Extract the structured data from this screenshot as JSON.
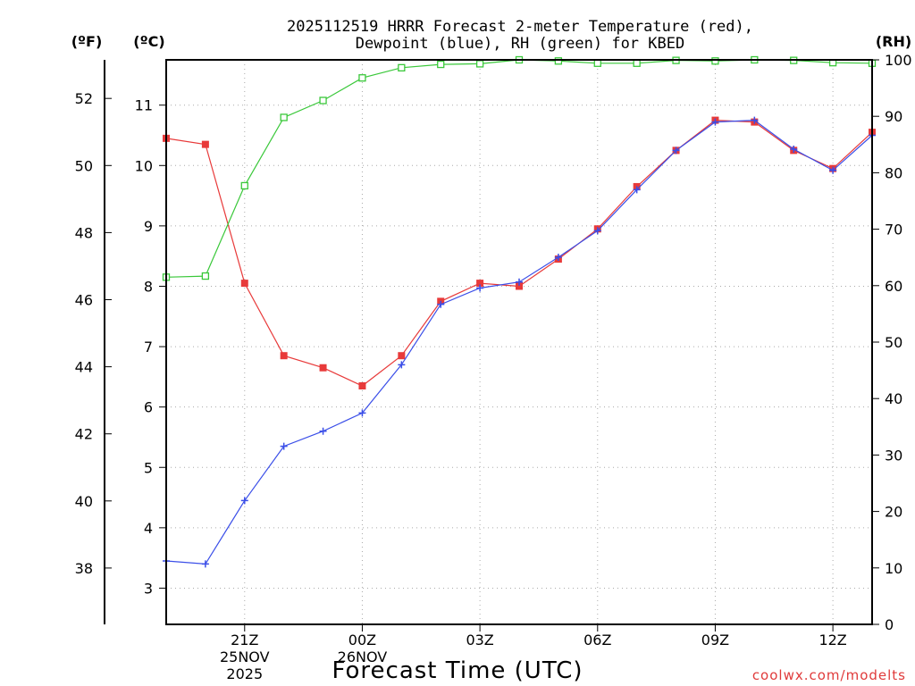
{
  "chart_data": {
    "type": "line",
    "title": "2025112519 HRRR Forecast 2-meter Temperature (red),",
    "subtitle": "Dewpoint (blue), RH (green) for KBED",
    "xlabel": "Forecast Time (UTC)",
    "credit": "coolwx.com/modelts",
    "units": {
      "fahrenheit": "(ºF)",
      "celsius": "(ºC)",
      "rh": "(RH)"
    },
    "x_forecast_hours": [
      0,
      1,
      2,
      3,
      4,
      5,
      6,
      7,
      8,
      9,
      10,
      11,
      12,
      13,
      14,
      15,
      16,
      17,
      18
    ],
    "x_tick_hours": [
      2,
      5,
      8,
      11,
      14,
      17
    ],
    "x_tick_labels": [
      [
        "21Z",
        "25NOV",
        "2025"
      ],
      [
        "00Z",
        "26NOV"
      ],
      [
        "03Z"
      ],
      [
        "06Z"
      ],
      [
        "09Z"
      ],
      [
        "12Z"
      ]
    ],
    "celsius_ticks": [
      3,
      4,
      5,
      6,
      7,
      8,
      9,
      10,
      11
    ],
    "fahrenheit_ticks": [
      38,
      40,
      42,
      44,
      46,
      48,
      50,
      52
    ],
    "rh_ticks": [
      0,
      10,
      20,
      30,
      40,
      50,
      60,
      70,
      80,
      90,
      100
    ],
    "ylim_celsius": [
      2.4,
      11.75
    ],
    "ylim_rh": [
      0,
      100
    ],
    "series": [
      {
        "name": "Temperature",
        "unit": "celsius",
        "color": "#e83a3a",
        "marker": "filled-square",
        "values": [
          10.45,
          10.35,
          8.05,
          6.85,
          6.65,
          6.35,
          6.85,
          7.75,
          8.05,
          8.0,
          8.45,
          8.95,
          9.65,
          10.25,
          10.75,
          10.72,
          10.25,
          9.95,
          10.55
        ]
      },
      {
        "name": "Dewpoint",
        "unit": "celsius",
        "color": "#3a4ee8",
        "marker": "plus",
        "values": [
          3.45,
          3.4,
          4.45,
          5.35,
          5.6,
          5.9,
          6.7,
          7.7,
          7.97,
          8.07,
          8.48,
          8.92,
          9.6,
          10.25,
          10.72,
          10.75,
          10.27,
          9.92,
          10.5
        ]
      },
      {
        "name": "RH",
        "unit": "rh",
        "color": "#3ac83a",
        "marker": "open-square",
        "values": [
          61.5,
          61.7,
          77.7,
          89.8,
          92.8,
          96.8,
          98.6,
          99.2,
          99.3,
          100,
          99.8,
          99.4,
          99.4,
          99.9,
          99.8,
          100,
          99.9,
          99.5,
          99.4
        ]
      }
    ]
  }
}
